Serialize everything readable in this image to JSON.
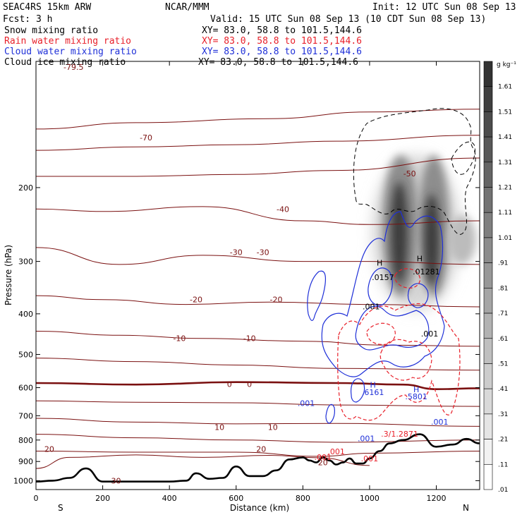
{
  "header": {
    "title_left": "SEAC4RS 15km ARW",
    "title_center": "NCAR/MMM",
    "init": "Init: 12 UTC Sun 08 Sep 13",
    "fcst": "Fcst:    3 h",
    "valid": "Valid: 15 UTC Sun 08 Sep 13 (10 CDT Sun 08 Sep 13)"
  },
  "fields": [
    {
      "name": "Snow mixing ratio",
      "xy": "XY=   83.0, 58.8 to 101.5,144.6",
      "color": "#000000"
    },
    {
      "name": "Rain water mixing ratio",
      "xy": "XY=  83.0, 58.8 to 101.5,144.6",
      "color": "#e8202a"
    },
    {
      "name": "Cloud water mixing ratio",
      "xy": "XY=  83.0, 58.8 to 101.5,144.6",
      "color": "#1f30d8"
    },
    {
      "name": "Cloud ice mixing ratio",
      "xy": "XY=  83.0, 58.8 to 101.5,144.6",
      "color": "#000000"
    }
  ],
  "axes": {
    "xlabel": "Distance (km)",
    "ylabel": "Pressure (hPa)",
    "x_ticks": [
      "0",
      "200",
      "400",
      "600",
      "800",
      "1000",
      "1200"
    ],
    "y_ticks": [
      "200",
      "300",
      "400",
      "500",
      "600",
      "700",
      "800",
      "900",
      "1000"
    ],
    "left_end": "S",
    "right_end": "N",
    "top_edge_label": "-79.5"
  },
  "colorbar": {
    "unit": "g kg⁻¹",
    "labels": [
      "1.61",
      "1.51",
      "1.41",
      "1.31",
      "1.21",
      "1.11",
      "1.01",
      ".91",
      ".81",
      ".71",
      ".61",
      ".51",
      ".41",
      ".31",
      ".21",
      ".11",
      ".01"
    ]
  },
  "annotations": {
    "temperature_labels": [
      "-70",
      "-50",
      "-40",
      "-30",
      "-30",
      "-20",
      "-20",
      "-10",
      "-10",
      "0",
      "0",
      "10",
      "10",
      "20",
      "20",
      "20",
      "30"
    ],
    "contour_labels": [
      {
        "text": "H",
        "field": "cloud ice"
      },
      {
        "text": ".0157",
        "field": "cloud ice"
      },
      {
        "text": "H",
        "field": "cloud ice"
      },
      {
        "text": ".01281",
        "field": "cloud ice"
      },
      {
        "text": ".001",
        "field": "cloud ice"
      },
      {
        "text": ".001",
        "field": "cloud ice"
      },
      {
        "text": "H",
        "field": "cloud water"
      },
      {
        "text": ".6161",
        "field": "cloud water"
      },
      {
        "text": "H",
        "field": "cloud water"
      },
      {
        "text": ".5801",
        "field": "cloud water"
      },
      {
        "text": ".001",
        "field": "cloud water"
      },
      {
        "text": ".001",
        "field": "cloud water"
      },
      {
        "text": ".001",
        "field": "cloud water"
      },
      {
        "text": ".3/1.2871",
        "field": "rain water"
      },
      {
        "text": ".001",
        "field": "rain water"
      },
      {
        "text": ".001",
        "field": "rain water"
      },
      {
        "text": ".001",
        "field": "rain water"
      }
    ]
  },
  "chart_data": {
    "type": "heatmap",
    "description": "Vertical cross section of hydrometeor mixing ratios (shaded snow, contours rain/cloud water/cloud ice) with temperature isotherms",
    "xlim": [
      0,
      1330
    ],
    "ylim_pressure": [
      1050,
      100
    ],
    "y_scale": "log",
    "isotherms": [
      {
        "temp": -70,
        "pts": [
          [
            0,
            145
          ],
          [
            300,
            140
          ],
          [
            700,
            137
          ],
          [
            1000,
            132
          ],
          [
            1330,
            130
          ]
        ]
      },
      {
        "temp": -60,
        "pts": [
          [
            0,
            163
          ],
          [
            300,
            160
          ],
          [
            600,
            158
          ],
          [
            900,
            155
          ],
          [
            1330,
            150
          ]
        ]
      },
      {
        "temp": -50,
        "pts": [
          [
            0,
            188
          ],
          [
            300,
            188
          ],
          [
            600,
            186
          ],
          [
            900,
            182
          ],
          [
            1330,
            170
          ]
        ]
      },
      {
        "temp": -40,
        "pts": [
          [
            0,
            225
          ],
          [
            200,
            228
          ],
          [
            500,
            222
          ],
          [
            800,
            240
          ],
          [
            1000,
            245
          ],
          [
            1330,
            240
          ]
        ]
      },
      {
        "temp": -30,
        "pts": [
          [
            0,
            278
          ],
          [
            250,
            305
          ],
          [
            500,
            290
          ],
          [
            800,
            300
          ],
          [
            1000,
            300
          ],
          [
            1330,
            305
          ]
        ]
      },
      {
        "temp": -20,
        "pts": [
          [
            0,
            362
          ],
          [
            200,
            370
          ],
          [
            450,
            380
          ],
          [
            700,
            375
          ],
          [
            1000,
            380
          ],
          [
            1330,
            385
          ]
        ]
      },
      {
        "temp": -10,
        "pts": [
          [
            0,
            440
          ],
          [
            250,
            450
          ],
          [
            500,
            458
          ],
          [
            800,
            465
          ],
          [
            1050,
            475
          ],
          [
            1330,
            478
          ]
        ]
      },
      {
        "temp": -5,
        "pts": [
          [
            0,
            510
          ],
          [
            300,
            520
          ],
          [
            600,
            530
          ],
          [
            900,
            540
          ],
          [
            1330,
            545
          ]
        ]
      },
      {
        "temp": 0,
        "pts": [
          [
            0,
            585
          ],
          [
            300,
            590
          ],
          [
            600,
            582
          ],
          [
            900,
            585
          ],
          [
            1100,
            590
          ],
          [
            1200,
            605
          ],
          [
            1330,
            602
          ]
        ]
      },
      {
        "temp": 5,
        "pts": [
          [
            0,
            645
          ],
          [
            300,
            650
          ],
          [
            600,
            652
          ],
          [
            900,
            660
          ],
          [
            1330,
            665
          ]
        ]
      },
      {
        "temp": 10,
        "pts": [
          [
            0,
            710
          ],
          [
            300,
            725
          ],
          [
            600,
            732
          ],
          [
            900,
            730
          ],
          [
            1330,
            742
          ]
        ]
      },
      {
        "temp": 15,
        "pts": [
          [
            0,
            775
          ],
          [
            300,
            790
          ],
          [
            600,
            800
          ],
          [
            900,
            810
          ],
          [
            1330,
            800
          ]
        ]
      },
      {
        "temp": 20,
        "pts": [
          [
            0,
            850
          ],
          [
            300,
            855
          ],
          [
            600,
            855
          ],
          [
            850,
            875
          ],
          [
            1000,
            860
          ],
          [
            1330,
            850
          ]
        ]
      },
      {
        "temp": 25,
        "pts": [
          [
            0,
            935
          ],
          [
            100,
            880
          ],
          [
            300,
            868
          ],
          [
            500,
            880
          ],
          [
            700,
            870
          ],
          [
            850,
            882
          ],
          [
            1000,
            920
          ]
        ]
      }
    ],
    "terrain": {
      "x": [
        0,
        50,
        100,
        150,
        200,
        250,
        300,
        350,
        400,
        450,
        480,
        520,
        560,
        600,
        640,
        680,
        720,
        760,
        800,
        820,
        840,
        860,
        880,
        900,
        920,
        940,
        960,
        980,
        1000,
        1030,
        1060,
        1100,
        1150,
        1200,
        1250,
        1290,
        1330
      ],
      "p": [
        1005,
        1000,
        985,
        935,
        1005,
        1005,
        1005,
        1005,
        1005,
        1000,
        960,
        990,
        985,
        925,
        975,
        975,
        945,
        890,
        880,
        895,
        905,
        880,
        895,
        915,
        905,
        885,
        910,
        910,
        885,
        850,
        815,
        800,
        775,
        830,
        820,
        795,
        815
      ]
    },
    "snow_max": 1.61,
    "cloud_ice_max": 0.0157,
    "cloud_water_max": 0.6161,
    "rain_water_max": 1.2871,
    "colorbar_levels": [
      0.01,
      0.11,
      0.21,
      0.31,
      0.41,
      0.51,
      0.61,
      0.71,
      0.81,
      0.91,
      1.01,
      1.11,
      1.21,
      1.31,
      1.41,
      1.51,
      1.61
    ],
    "grid": false
  }
}
